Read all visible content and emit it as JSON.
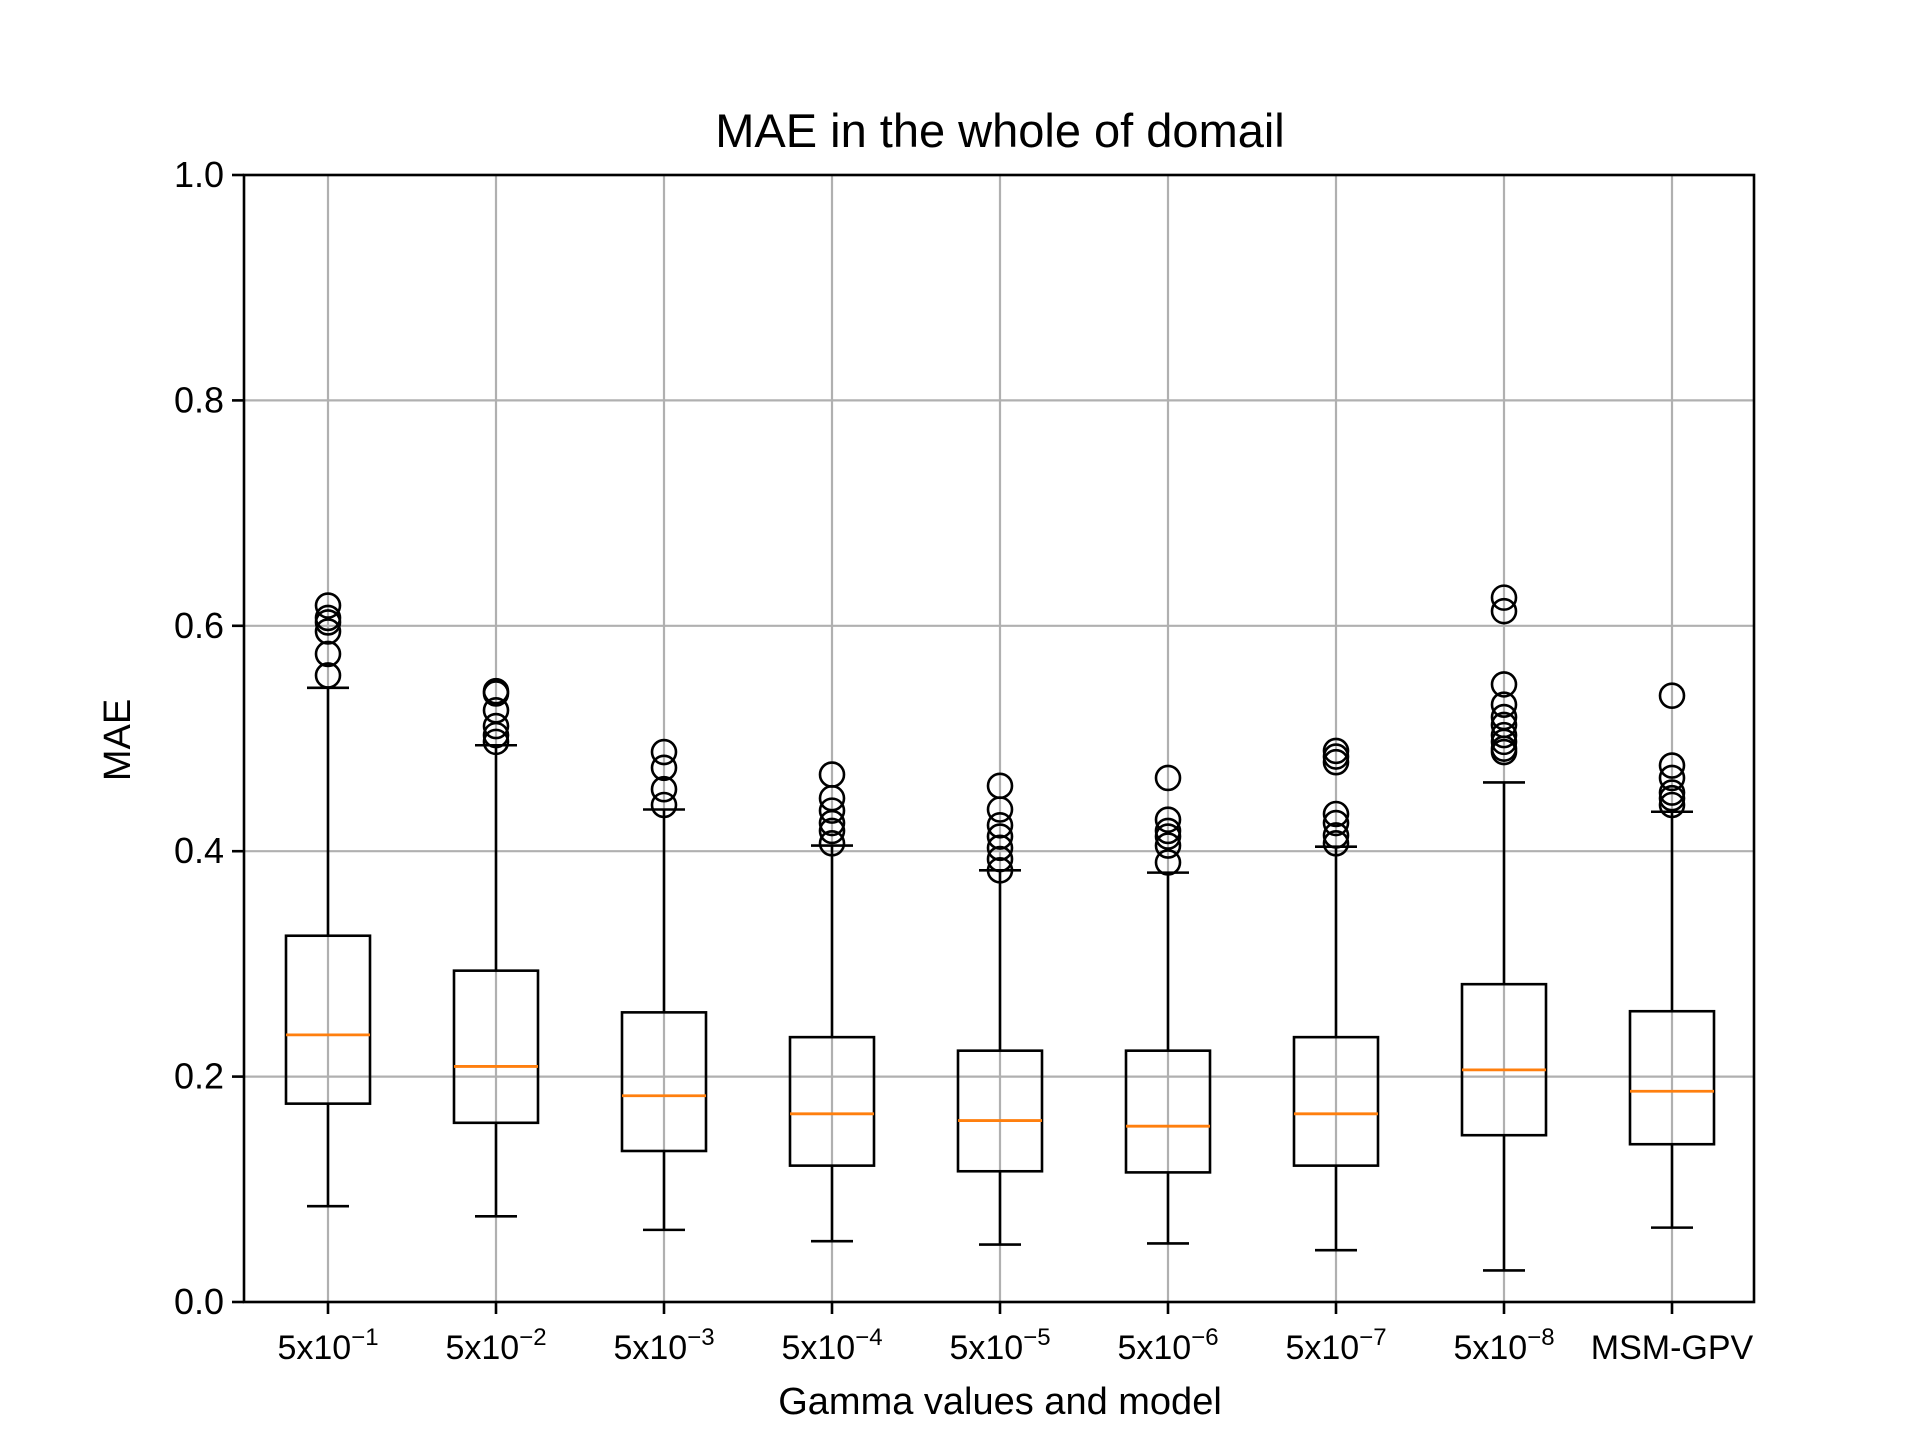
{
  "chart_data": {
    "type": "box",
    "title": "MAE in the whole of domail",
    "xlabel": "Gamma values and model",
    "ylabel": "MAE",
    "ylim": [
      0.0,
      1.0
    ],
    "yticks": [
      0.0,
      0.2,
      0.4,
      0.6,
      0.8,
      1.0
    ],
    "ytick_labels": [
      "0.0",
      "0.2",
      "0.4",
      "0.6",
      "0.8",
      "1.0"
    ],
    "grid": true,
    "categories": [
      {
        "base": "5x10",
        "exp": "−1"
      },
      {
        "base": "5x10",
        "exp": "−2"
      },
      {
        "base": "5x10",
        "exp": "−3"
      },
      {
        "base": "5x10",
        "exp": "−4"
      },
      {
        "base": "5x10",
        "exp": "−5"
      },
      {
        "base": "5x10",
        "exp": "−6"
      },
      {
        "base": "5x10",
        "exp": "−7"
      },
      {
        "base": "5x10",
        "exp": "−8"
      },
      {
        "base": "MSM-GPV",
        "exp": ""
      }
    ],
    "boxes": [
      {
        "whislo": 0.085,
        "q1": 0.176,
        "med": 0.237,
        "q3": 0.325,
        "whishi": 0.545,
        "fliers": [
          0.556,
          0.575,
          0.595,
          0.603,
          0.607,
          0.618
        ]
      },
      {
        "whislo": 0.076,
        "q1": 0.159,
        "med": 0.209,
        "q3": 0.294,
        "whishi": 0.494,
        "fliers": [
          0.497,
          0.503,
          0.511,
          0.525,
          0.54,
          0.542
        ]
      },
      {
        "whislo": 0.064,
        "q1": 0.134,
        "med": 0.183,
        "q3": 0.257,
        "whishi": 0.437,
        "fliers": [
          0.441,
          0.455,
          0.474,
          0.488
        ]
      },
      {
        "whislo": 0.054,
        "q1": 0.121,
        "med": 0.167,
        "q3": 0.235,
        "whishi": 0.405,
        "fliers": [
          0.407,
          0.418,
          0.425,
          0.436,
          0.447,
          0.468
        ]
      },
      {
        "whislo": 0.051,
        "q1": 0.116,
        "med": 0.161,
        "q3": 0.223,
        "whishi": 0.383,
        "fliers": [
          0.383,
          0.393,
          0.403,
          0.413,
          0.423,
          0.437,
          0.458
        ]
      },
      {
        "whislo": 0.052,
        "q1": 0.115,
        "med": 0.156,
        "q3": 0.223,
        "whishi": 0.381,
        "fliers": [
          0.39,
          0.405,
          0.413,
          0.418,
          0.428,
          0.465
        ]
      },
      {
        "whislo": 0.046,
        "q1": 0.121,
        "med": 0.167,
        "q3": 0.235,
        "whishi": 0.404,
        "fliers": [
          0.407,
          0.414,
          0.425,
          0.433,
          0.479,
          0.484,
          0.489
        ]
      },
      {
        "whislo": 0.028,
        "q1": 0.148,
        "med": 0.206,
        "q3": 0.282,
        "whishi": 0.461,
        "fliers": [
          0.488,
          0.491,
          0.497,
          0.503,
          0.512,
          0.519,
          0.53,
          0.548,
          0.613,
          0.625
        ]
      },
      {
        "whislo": 0.066,
        "q1": 0.14,
        "med": 0.187,
        "q3": 0.258,
        "whishi": 0.435,
        "fliers": [
          0.441,
          0.447,
          0.452,
          0.465,
          0.476,
          0.538
        ]
      }
    ]
  }
}
